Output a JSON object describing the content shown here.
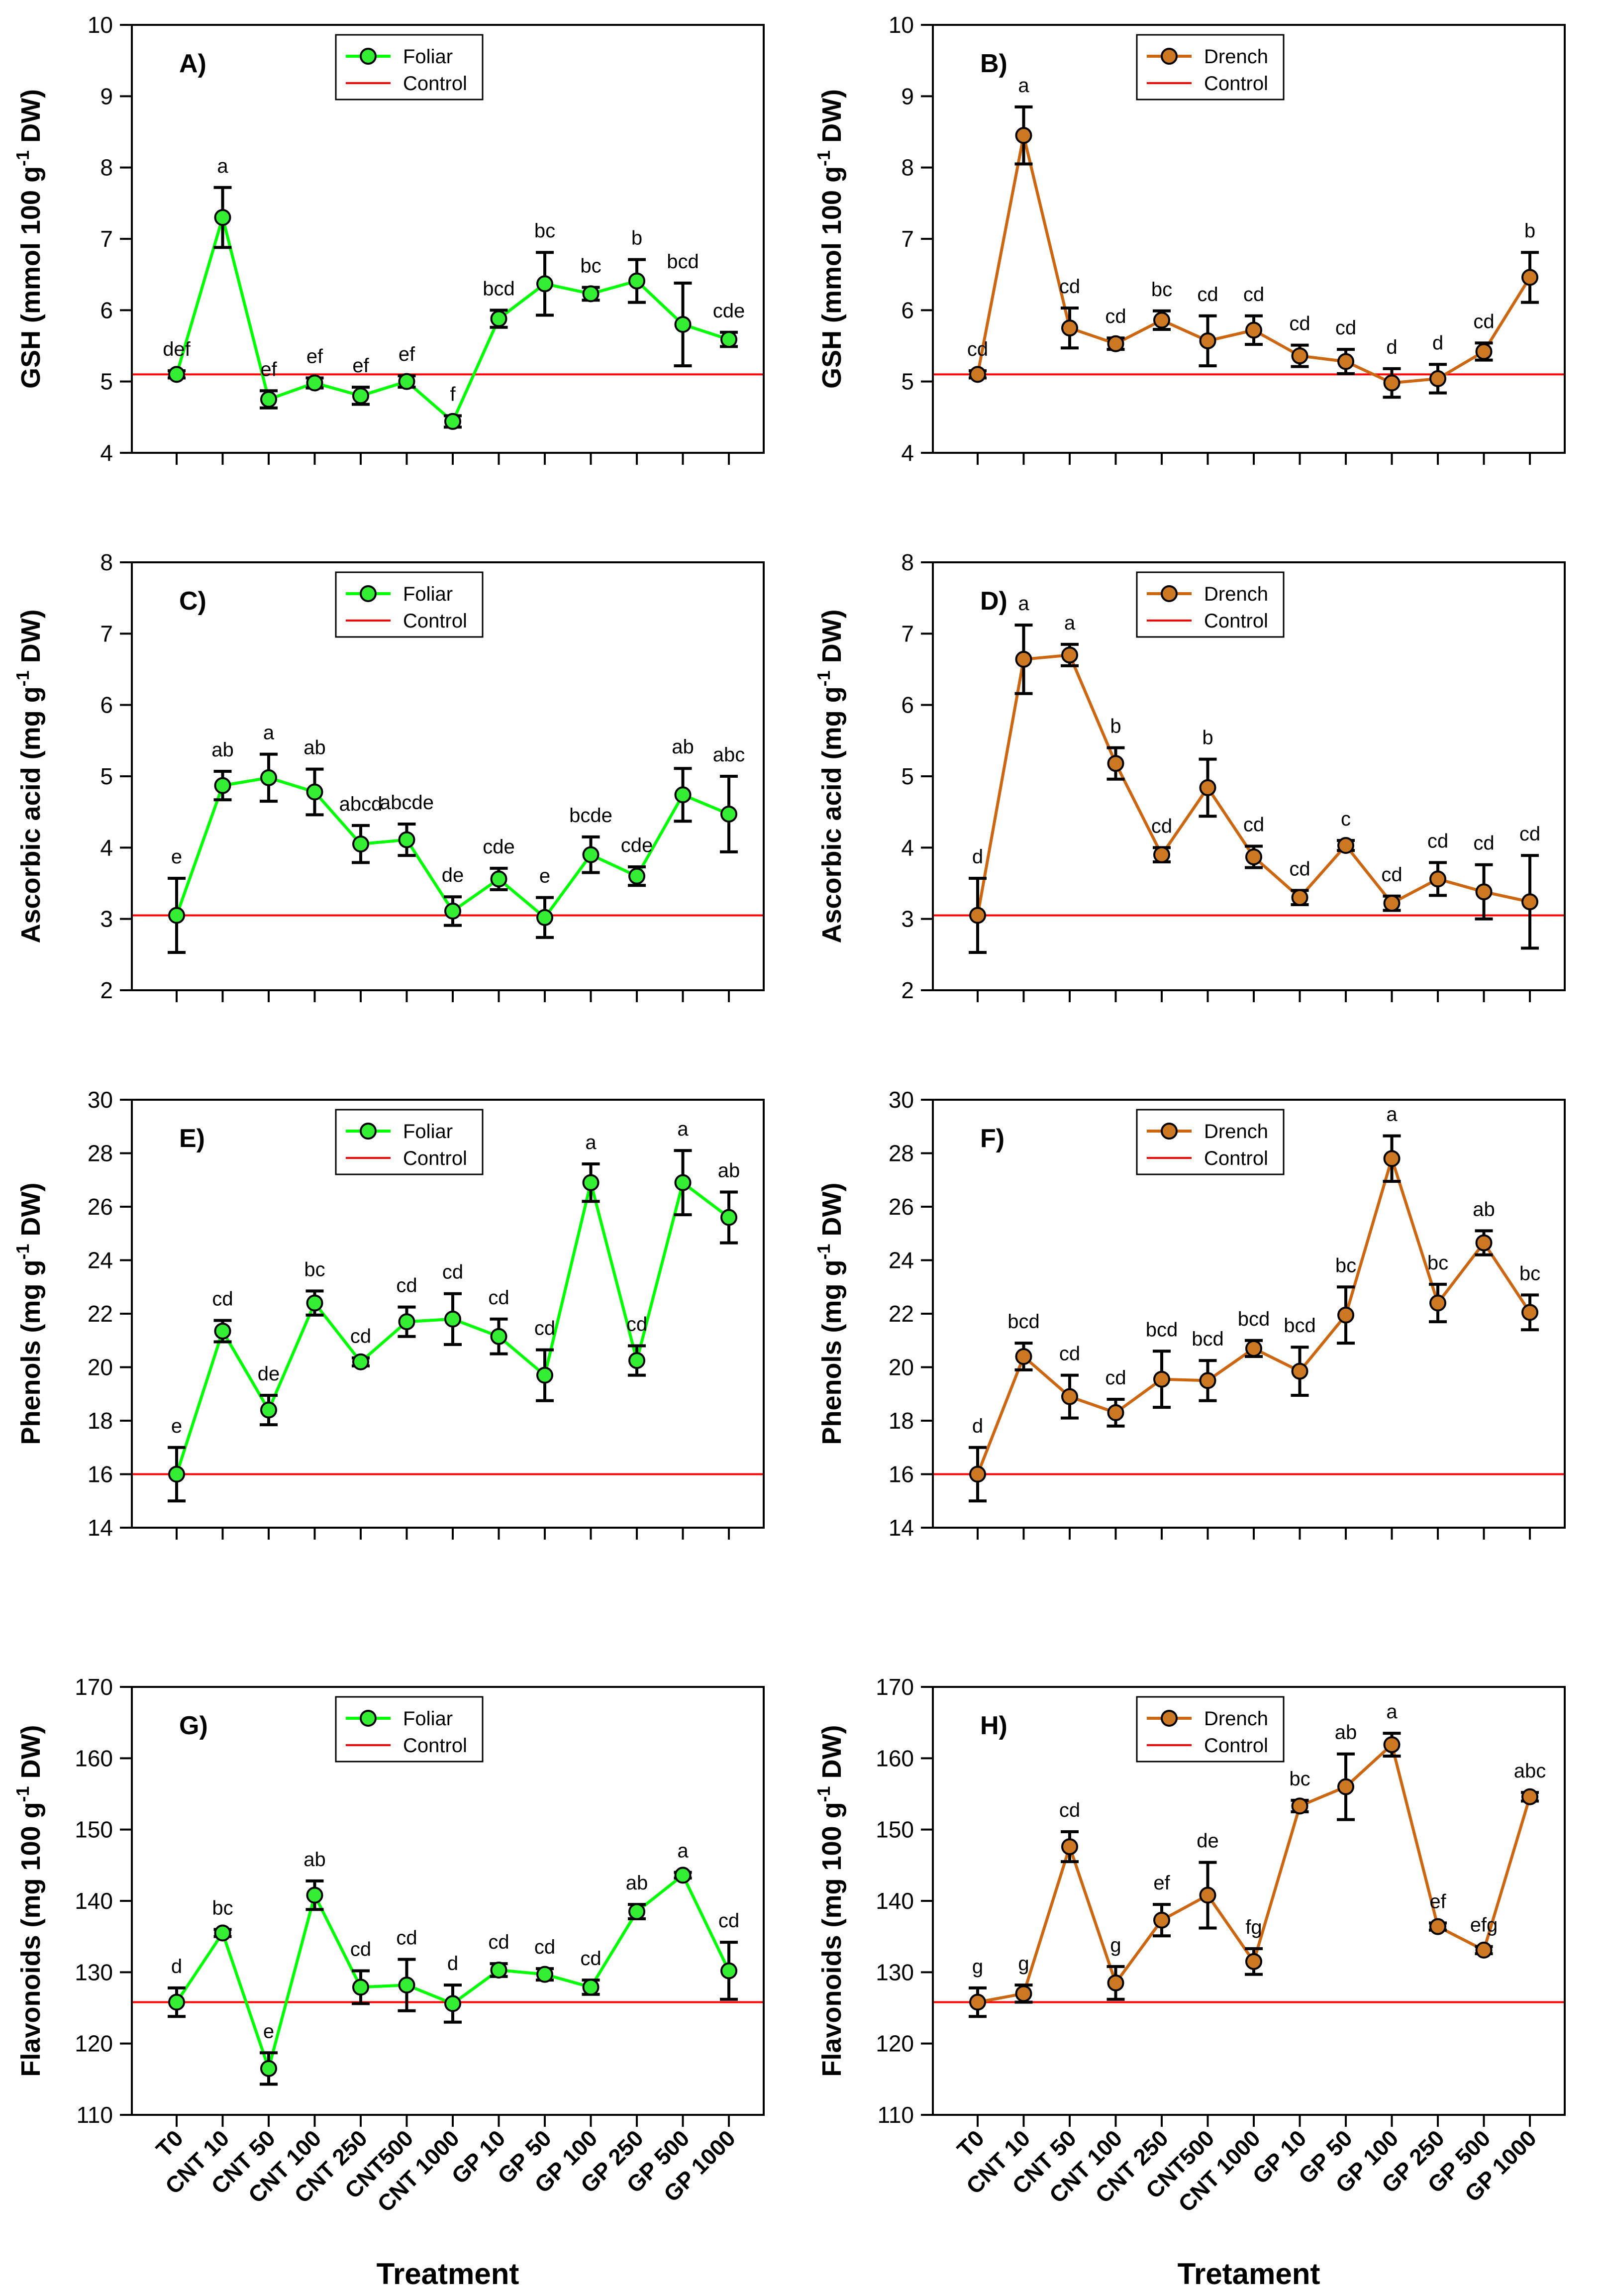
{
  "treatments": [
    "T0",
    "CNT 10",
    "CNT 50",
    "CNT 100",
    "CNT 250",
    "CNT500",
    "CNT 1000",
    "GP 10",
    "GP 50",
    "GP 100",
    "GP 250",
    "GP 500",
    "GP 1000"
  ],
  "colors": {
    "foliar_line": "#00ff00",
    "foliar_marker": "#33ee33",
    "drench_line": "#cc6611",
    "drench_marker": "#cc7722",
    "control_line": "#ff0000",
    "axis": "#000000"
  },
  "chart_data": [
    {
      "panel": "A)",
      "type": "line",
      "series_name": "Foliar",
      "style": "foliar",
      "title": "",
      "xlabel": "",
      "ylabel": "GSH (mmol 100 g-1 DW)",
      "ylabel_main": "GSH (mmol 100 g",
      "ylabel_sup": "-1",
      "ylabel_end": " DW)",
      "ylim": [
        4,
        10
      ],
      "yticks": [
        4,
        5,
        6,
        7,
        8,
        9,
        10
      ],
      "control": 5.1,
      "legend": {
        "series": "Foliar",
        "control": "Control"
      },
      "values": [
        5.1,
        7.3,
        4.75,
        4.98,
        4.8,
        5.0,
        4.44,
        5.88,
        6.37,
        6.23,
        6.41,
        5.8,
        5.59
      ],
      "errors": [
        0.05,
        0.42,
        0.12,
        0.07,
        0.12,
        0.08,
        0.08,
        0.12,
        0.44,
        0.09,
        0.3,
        0.58,
        0.1
      ],
      "letters": [
        "def",
        "a",
        "ef",
        "ef",
        "ef",
        "ef",
        "f",
        "bcd",
        "bc",
        "bc",
        "b",
        "bcd",
        "cde"
      ]
    },
    {
      "panel": "B)",
      "type": "line",
      "series_name": "Drench",
      "style": "drench",
      "title": "",
      "xlabel": "",
      "ylabel": "GSH (mmol 100 g-1 DW)",
      "ylabel_main": "GSH (mmol 100 g",
      "ylabel_sup": "-1",
      "ylabel_end": " DW)",
      "ylim": [
        4,
        10
      ],
      "yticks": [
        4,
        5,
        6,
        7,
        8,
        9,
        10
      ],
      "control": 5.1,
      "legend": {
        "series": "Drench",
        "control": "Control"
      },
      "values": [
        5.1,
        8.45,
        5.75,
        5.53,
        5.86,
        5.57,
        5.72,
        5.36,
        5.28,
        4.98,
        5.04,
        5.42,
        6.46
      ],
      "errors": [
        0.05,
        0.4,
        0.28,
        0.08,
        0.13,
        0.35,
        0.2,
        0.15,
        0.17,
        0.2,
        0.2,
        0.12,
        0.35
      ],
      "letters": [
        "cd",
        "a",
        "cd",
        "cd",
        "bc",
        "cd",
        "cd",
        "cd",
        "cd",
        "d",
        "d",
        "cd",
        "b"
      ]
    },
    {
      "panel": "C)",
      "type": "line",
      "series_name": "Foliar",
      "style": "foliar",
      "title": "",
      "xlabel": "",
      "ylabel": "Ascorbic acid (mg g-1 DW)",
      "ylabel_main": "Ascorbic acid (mg g",
      "ylabel_sup": "-1",
      "ylabel_end": " DW)",
      "ylim": [
        2,
        8
      ],
      "yticks": [
        2,
        3,
        4,
        5,
        6,
        7,
        8
      ],
      "control": 3.05,
      "legend": {
        "series": "Foliar",
        "control": "Control"
      },
      "values": [
        3.05,
        4.87,
        4.98,
        4.78,
        4.05,
        4.11,
        3.11,
        3.56,
        3.02,
        3.9,
        3.6,
        4.74,
        4.47
      ],
      "errors": [
        0.52,
        0.2,
        0.33,
        0.32,
        0.26,
        0.22,
        0.2,
        0.15,
        0.28,
        0.25,
        0.13,
        0.37,
        0.53
      ],
      "letters": [
        "e",
        "ab",
        "a",
        "ab",
        "abcd",
        "abcde",
        "de",
        "cde",
        "e",
        "bcde",
        "cde",
        "ab",
        "abc"
      ]
    },
    {
      "panel": "D)",
      "type": "line",
      "series_name": "Drench",
      "style": "drench",
      "title": "",
      "xlabel": "",
      "ylabel": "Ascorbic acid (mg g-1 DW)",
      "ylabel_main": "Ascorbic acid (mg g",
      "ylabel_sup": "-1",
      "ylabel_end": " DW)",
      "ylim": [
        2,
        8
      ],
      "yticks": [
        2,
        3,
        4,
        5,
        6,
        7,
        8
      ],
      "control": 3.05,
      "legend": {
        "series": "Drench",
        "control": "Control"
      },
      "values": [
        3.05,
        6.64,
        6.7,
        5.18,
        3.9,
        4.84,
        3.87,
        3.3,
        4.03,
        3.22,
        3.56,
        3.38,
        3.24
      ],
      "errors": [
        0.52,
        0.48,
        0.15,
        0.22,
        0.1,
        0.4,
        0.15,
        0.1,
        0.07,
        0.1,
        0.23,
        0.38,
        0.65
      ],
      "letters": [
        "d",
        "a",
        "a",
        "b",
        "cd",
        "b",
        "cd",
        "cd",
        "c",
        "cd",
        "cd",
        "cd",
        "cd"
      ]
    },
    {
      "panel": "E)",
      "type": "line",
      "series_name": "Foliar",
      "style": "foliar",
      "title": "",
      "xlabel": "",
      "ylabel": "Phenols (mg g-1 DW)",
      "ylabel_main": "Phenols (mg g",
      "ylabel_sup": "-1",
      "ylabel_end": " DW)",
      "ylim": [
        14,
        30
      ],
      "yticks": [
        14,
        16,
        18,
        20,
        22,
        24,
        26,
        28,
        30
      ],
      "control": 16.0,
      "legend": {
        "series": "Foliar",
        "control": "Control"
      },
      "values": [
        16.0,
        21.35,
        18.4,
        22.4,
        20.2,
        21.7,
        21.8,
        21.15,
        19.7,
        26.9,
        20.25,
        26.9,
        25.6
      ],
      "errors": [
        1.0,
        0.4,
        0.55,
        0.45,
        0.15,
        0.55,
        0.95,
        0.65,
        0.95,
        0.7,
        0.55,
        1.2,
        0.95
      ],
      "letters": [
        "e",
        "cd",
        "de",
        "bc",
        "cd",
        "cd",
        "cd",
        "cd",
        "cd",
        "a",
        "cd",
        "a",
        "ab"
      ]
    },
    {
      "panel": "F)",
      "type": "line",
      "series_name": "Drench",
      "style": "drench",
      "title": "",
      "xlabel": "",
      "ylabel": "Phenols (mg g-1 DW)",
      "ylabel_main": "Phenols (mg g",
      "ylabel_sup": "-1",
      "ylabel_end": " DW)",
      "ylim": [
        14,
        30
      ],
      "yticks": [
        14,
        16,
        18,
        20,
        22,
        24,
        26,
        28,
        30
      ],
      "control": 16.0,
      "legend": {
        "series": "Drench",
        "control": "Control"
      },
      "values": [
        16.0,
        20.4,
        18.9,
        18.3,
        19.55,
        19.5,
        20.7,
        19.85,
        21.95,
        27.8,
        22.4,
        24.65,
        22.05
      ],
      "errors": [
        1.0,
        0.5,
        0.8,
        0.5,
        1.05,
        0.75,
        0.3,
        0.9,
        1.05,
        0.85,
        0.7,
        0.45,
        0.65
      ],
      "letters": [
        "d",
        "bcd",
        "cd",
        "cd",
        "bcd",
        "bcd",
        "bcd",
        "bcd",
        "bc",
        "a",
        "bc",
        "ab",
        "bc"
      ]
    },
    {
      "panel": "G)",
      "type": "line",
      "series_name": "Foliar",
      "style": "foliar",
      "title": "",
      "xlabel": "Treatment",
      "ylabel": "Flavonoids (mg 100 g-1 DW)",
      "ylabel_main": "Flavonoids (mg 100 g",
      "ylabel_sup": "-1",
      "ylabel_end": " DW)",
      "ylim": [
        110,
        170
      ],
      "yticks": [
        110,
        120,
        130,
        140,
        150,
        160,
        170
      ],
      "control": 125.8,
      "legend": {
        "series": "Foliar",
        "control": "Control"
      },
      "values": [
        125.8,
        135.5,
        116.5,
        140.8,
        127.9,
        128.2,
        125.6,
        130.3,
        129.7,
        127.9,
        138.5,
        143.6,
        130.2
      ],
      "errors": [
        2.0,
        0.5,
        2.2,
        2.0,
        2.3,
        3.6,
        2.6,
        0.9,
        0.8,
        1.0,
        1.0,
        0.4,
        4.0
      ],
      "letters": [
        "d",
        "bc",
        "e",
        "ab",
        "cd",
        "cd",
        "d",
        "cd",
        "cd",
        "cd",
        "ab",
        "a",
        "cd"
      ]
    },
    {
      "panel": "H)",
      "type": "line",
      "series_name": "Drench",
      "style": "drench",
      "title": "",
      "xlabel": "Tretament",
      "ylabel": "Flavonoids (mg 100 g-1 DW)",
      "ylabel_main": "Flavonoids (mg 100 g",
      "ylabel_sup": "-1",
      "ylabel_end": " DW)",
      "ylim": [
        110,
        170
      ],
      "yticks": [
        110,
        120,
        130,
        140,
        150,
        160,
        170
      ],
      "control": 125.8,
      "legend": {
        "series": "Drench",
        "control": "Control"
      },
      "values": [
        125.8,
        127.0,
        147.6,
        128.5,
        137.3,
        140.8,
        131.5,
        153.3,
        156.0,
        161.9,
        136.4,
        133.1,
        154.6
      ],
      "errors": [
        2.0,
        1.2,
        2.1,
        2.3,
        2.2,
        4.6,
        1.8,
        0.8,
        4.6,
        1.6,
        0.5,
        0.5,
        0.6
      ],
      "letters": [
        "g",
        "g",
        "cd",
        "g",
        "ef",
        "de",
        "fg",
        "bc",
        "ab",
        "a",
        "ef",
        "efg",
        "abc"
      ]
    }
  ]
}
